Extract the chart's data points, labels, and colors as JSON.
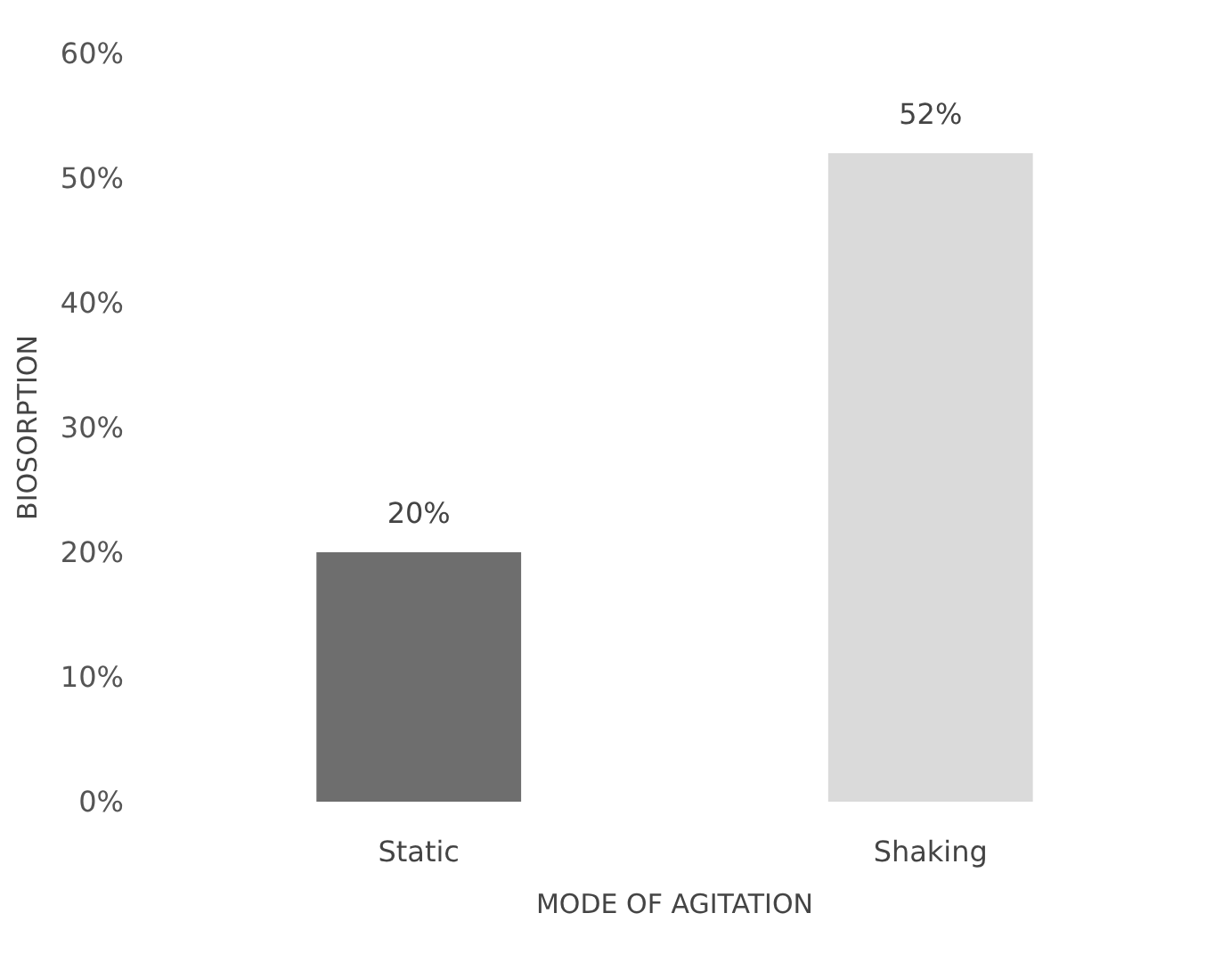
{
  "chart_data": {
    "type": "bar",
    "xlabel": "MODE OF AGITATION",
    "ylabel": "BIOSORPTION",
    "categories": [
      "Static",
      "Shaking"
    ],
    "values": [
      20,
      52
    ],
    "colors": [
      "#6e6e6e",
      "#dadada"
    ],
    "value_labels": [
      "20%",
      "52%"
    ],
    "ylim": [
      0,
      60
    ],
    "yticks": [
      {
        "value": 0,
        "label": "0%"
      },
      {
        "value": 10,
        "label": "10%"
      },
      {
        "value": 20,
        "label": "20%"
      },
      {
        "value": 30,
        "label": "30%"
      },
      {
        "value": 40,
        "label": "40%"
      },
      {
        "value": 50,
        "label": "50%"
      },
      {
        "value": 60,
        "label": "60%"
      }
    ],
    "grid": false
  }
}
